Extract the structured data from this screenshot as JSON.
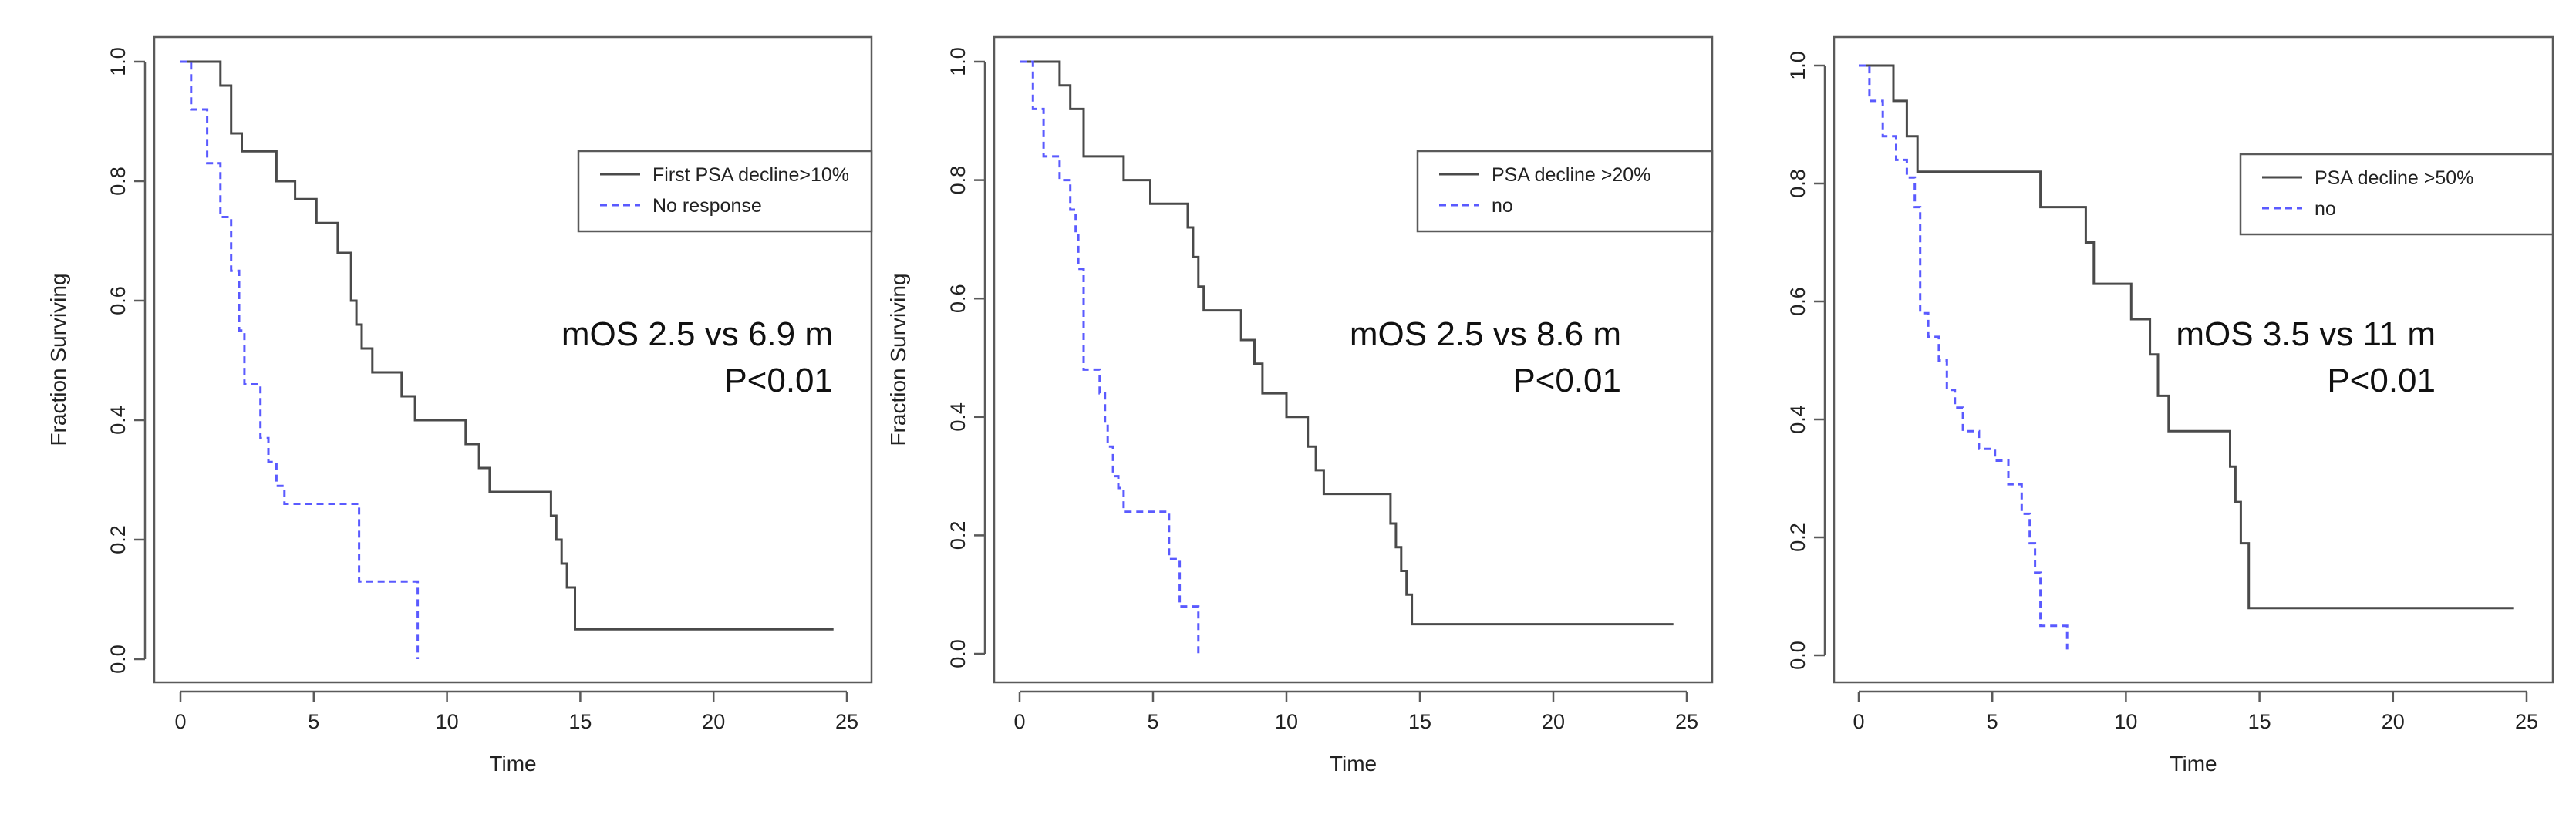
{
  "colors": {
    "responder": "#4a4a4a",
    "nonresponder": "#5a5aff"
  },
  "chart_data": [
    {
      "type": "line",
      "xlabel": "Time",
      "ylabel": "Fraction Surviving",
      "xlim": [
        0,
        25
      ],
      "ylim": [
        0,
        1
      ],
      "xticks": [
        "0",
        "5",
        "10",
        "15",
        "20",
        "25"
      ],
      "yticks": [
        "0.0",
        "0.2",
        "0.4",
        "0.6",
        "0.8",
        "1.0"
      ],
      "legend_placement": "right",
      "annotation": [
        "mOS 2.5 vs 6.9 m",
        "P<0.01"
      ],
      "series": [
        {
          "name": "First PSA decline>10%",
          "style": "solid",
          "x": [
            0,
            1.5,
            1.9,
            2.3,
            2.8,
            3.6,
            4.3,
            5.1,
            5.9,
            6.4,
            6.6,
            6.8,
            7.2,
            7.7,
            8.3,
            8.8,
            9.3,
            10.7,
            11.2,
            11.6,
            13.9,
            14.1,
            14.3,
            14.5,
            14.8,
            24.5
          ],
          "y": [
            1.0,
            0.96,
            0.88,
            0.85,
            0.85,
            0.8,
            0.77,
            0.73,
            0.68,
            0.6,
            0.56,
            0.52,
            0.48,
            0.48,
            0.44,
            0.4,
            0.4,
            0.36,
            0.32,
            0.28,
            0.24,
            0.2,
            0.16,
            0.12,
            0.05,
            0.05
          ]
        },
        {
          "name": "No response",
          "style": "dashed",
          "x": [
            0,
            0.4,
            1.0,
            1.5,
            1.9,
            2.2,
            2.4,
            3.0,
            3.3,
            3.6,
            3.9,
            6.7,
            8.8,
            8.9
          ],
          "y": [
            1.0,
            0.92,
            0.83,
            0.74,
            0.65,
            0.55,
            0.46,
            0.37,
            0.33,
            0.29,
            0.26,
            0.13,
            0.13,
            0.0
          ]
        }
      ]
    },
    {
      "type": "line",
      "xlabel": "Time",
      "ylabel": "Fraction Surviving",
      "xlim": [
        0,
        25
      ],
      "ylim": [
        0,
        1
      ],
      "xticks": [
        "0",
        "5",
        "10",
        "15",
        "20",
        "25"
      ],
      "yticks": [
        "0.0",
        "0.2",
        "0.4",
        "0.6",
        "0.8",
        "1.0"
      ],
      "legend_placement": "top-right",
      "annotation": [
        "mOS 2.5 vs 8.6 m",
        "P<0.01"
      ],
      "series": [
        {
          "name": "PSA decline >20%",
          "style": "solid",
          "x": [
            0,
            1.5,
            1.9,
            2.4,
            3.9,
            4.9,
            6.3,
            6.5,
            6.7,
            6.9,
            7.5,
            8.3,
            8.8,
            9.1,
            10.0,
            10.8,
            11.1,
            11.4,
            13.9,
            14.1,
            14.3,
            14.5,
            14.7,
            24.5
          ],
          "y": [
            1.0,
            0.96,
            0.92,
            0.84,
            0.8,
            0.76,
            0.72,
            0.67,
            0.62,
            0.58,
            0.58,
            0.53,
            0.49,
            0.44,
            0.4,
            0.35,
            0.31,
            0.27,
            0.22,
            0.18,
            0.14,
            0.1,
            0.05,
            0.05
          ]
        },
        {
          "name": "no",
          "style": "dashed",
          "x": [
            0,
            0.5,
            0.9,
            1.5,
            1.9,
            2.1,
            2.2,
            2.4,
            3.0,
            3.2,
            3.3,
            3.5,
            3.7,
            3.9,
            5.3,
            5.6,
            6.0,
            6.5,
            6.7
          ],
          "y": [
            1.0,
            0.92,
            0.84,
            0.8,
            0.75,
            0.71,
            0.65,
            0.48,
            0.44,
            0.39,
            0.35,
            0.3,
            0.28,
            0.24,
            0.24,
            0.16,
            0.08,
            0.08,
            0.0
          ]
        }
      ]
    },
    {
      "type": "line",
      "xlabel": "Time",
      "ylabel": "",
      "xlim": [
        0,
        25
      ],
      "ylim": [
        0,
        1
      ],
      "xticks": [
        "0",
        "5",
        "10",
        "15",
        "20",
        "25"
      ],
      "yticks": [
        "0.0",
        "0.2",
        "0.4",
        "0.6",
        "0.8",
        "1.0"
      ],
      "legend_placement": "top-right",
      "annotation": [
        "mOS 3.5 vs 11 m",
        "P<0.01"
      ],
      "series": [
        {
          "name": "PSA decline >50%",
          "style": "solid",
          "x": [
            0,
            1.3,
            1.8,
            2.2,
            6.8,
            8.5,
            8.8,
            9.2,
            10.2,
            10.9,
            11.2,
            11.6,
            13.9,
            14.1,
            14.3,
            14.6,
            24.5
          ],
          "y": [
            1.0,
            0.94,
            0.88,
            0.82,
            0.76,
            0.7,
            0.63,
            0.63,
            0.57,
            0.51,
            0.44,
            0.38,
            0.32,
            0.26,
            0.19,
            0.08,
            0.08
          ]
        },
        {
          "name": "no",
          "style": "dashed",
          "x": [
            0,
            0.4,
            0.9,
            1.4,
            1.8,
            2.1,
            2.3,
            2.6,
            3.0,
            3.3,
            3.6,
            3.9,
            4.5,
            5.1,
            5.6,
            6.1,
            6.4,
            6.6,
            6.8,
            7.6,
            7.8
          ],
          "y": [
            1.0,
            0.94,
            0.88,
            0.84,
            0.81,
            0.76,
            0.58,
            0.54,
            0.5,
            0.45,
            0.42,
            0.38,
            0.35,
            0.33,
            0.29,
            0.24,
            0.19,
            0.14,
            0.05,
            0.05,
            0.01
          ]
        }
      ]
    }
  ]
}
